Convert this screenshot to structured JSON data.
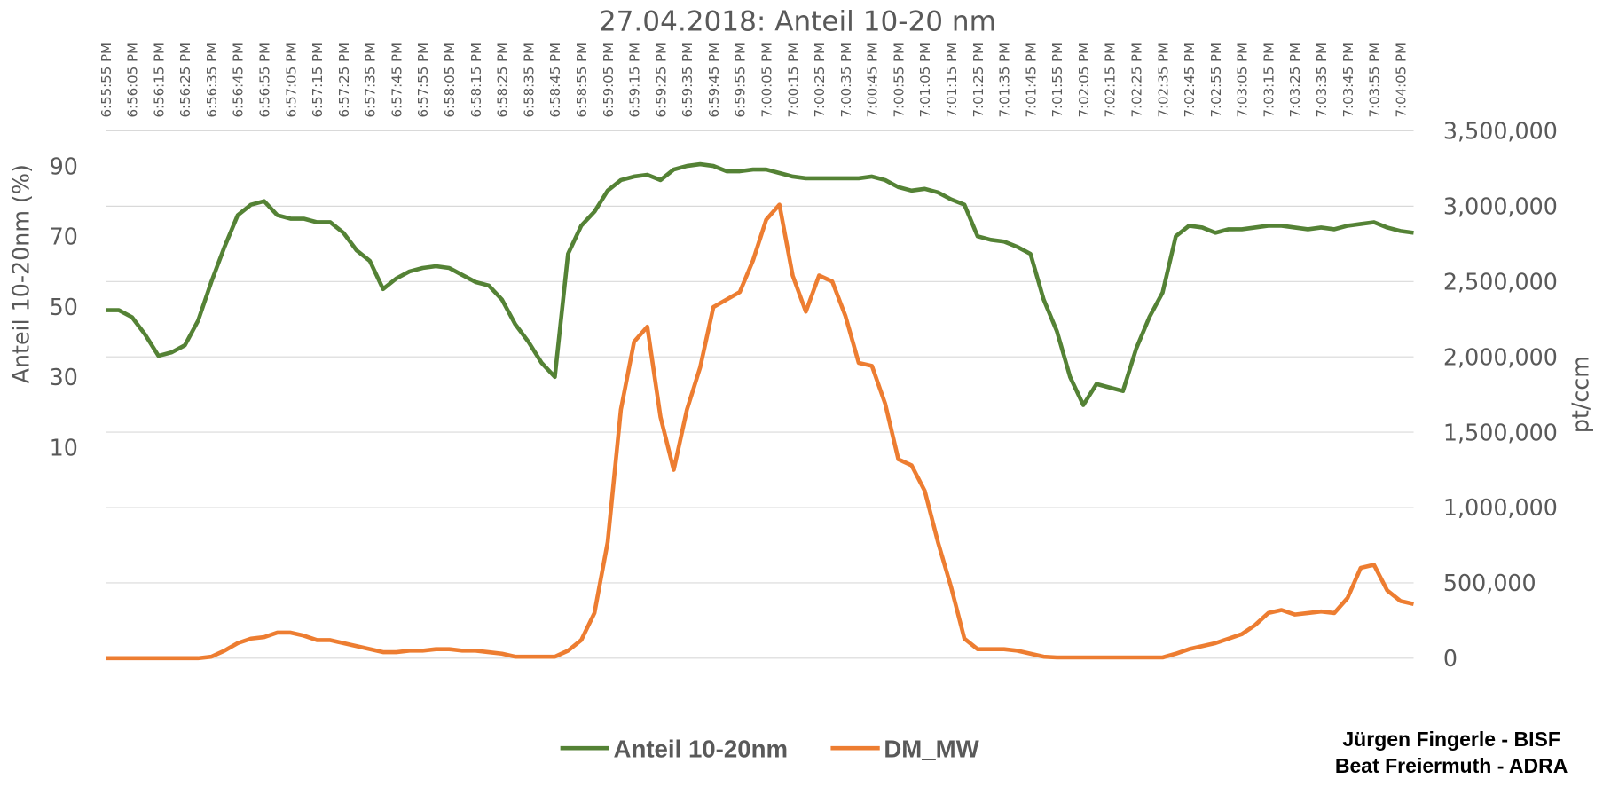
{
  "chart_data": {
    "type": "line",
    "title": "27.04.2018: Anteil 10-20 nm",
    "y_label": "Anteil 10-20nm (%)",
    "y2_label": "pt/ccm",
    "annotations": [
      "Jürgen Fingerle - BISF",
      "Beat Freiermuth - ADRA"
    ],
    "categories": [
      "6:55:55 PM",
      null,
      "6:56:05 PM",
      null,
      "6:56:15 PM",
      null,
      "6:56:25 PM",
      null,
      "6:56:35 PM",
      null,
      "6:56:45 PM",
      null,
      "6:56:55 PM",
      null,
      "6:57:05 PM",
      null,
      "6:57:15 PM",
      null,
      "6:57:25 PM",
      null,
      "6:57:35 PM",
      null,
      "6:57:45 PM",
      null,
      "6:57:55 PM",
      null,
      "6:58:05 PM",
      null,
      "6:58:15 PM",
      null,
      "6:58:25 PM",
      null,
      "6:58:35 PM",
      null,
      "6:58:45 PM",
      null,
      "6:58:55 PM",
      null,
      "6:59:05 PM",
      null,
      "6:59:15 PM",
      null,
      "6:59:25 PM",
      null,
      "6:59:35 PM",
      null,
      "6:59:45 PM",
      null,
      "6:59:55 PM",
      null,
      "7:00:05 PM",
      null,
      "7:00:15 PM",
      null,
      "7:00:25 PM",
      null,
      "7:00:35 PM",
      null,
      "7:00:45 PM",
      null,
      "7:00:55 PM",
      null,
      "7:01:05 PM",
      null,
      "7:01:15 PM",
      null,
      "7:01:25 PM",
      null,
      "7:01:35 PM",
      null,
      "7:01:45 PM",
      null,
      "7:01:55 PM",
      null,
      "7:02:05 PM",
      null,
      "7:02:15 PM",
      null,
      "7:02:25 PM",
      null,
      "7:02:35 PM",
      null,
      "7:02:45 PM",
      null,
      "7:02:55 PM",
      null,
      "7:03:05 PM",
      null,
      "7:03:15 PM",
      null,
      "7:03:25 PM",
      null,
      "7:03:35 PM",
      null,
      "7:03:45 PM",
      null,
      "7:03:55 PM",
      null,
      "7:04:05 PM",
      null
    ],
    "series": [
      {
        "name": "Anteil 10-20nm",
        "color": "#548235",
        "values": [
          49,
          49,
          47,
          42,
          36,
          37,
          39,
          46,
          57,
          67,
          76,
          79,
          80,
          76,
          75,
          75,
          74,
          74,
          71,
          66,
          63,
          55,
          58,
          60,
          61,
          61.5,
          61,
          59,
          57,
          56,
          52,
          45,
          40,
          34,
          30,
          65,
          73,
          77,
          83,
          86,
          87,
          87.5,
          86,
          89,
          90,
          90.5,
          90,
          88.5,
          88.5,
          89,
          89,
          88,
          87,
          86.5,
          86.5,
          86.5,
          86.5,
          86.5,
          87,
          86,
          84,
          83,
          83.5,
          82.5,
          80.5,
          79,
          70,
          69,
          68.5,
          67,
          65,
          52,
          43,
          30,
          22,
          28,
          27,
          26,
          38,
          47,
          54,
          70,
          73,
          72.5,
          71,
          72,
          72,
          72.5,
          73,
          73,
          72.5,
          72,
          72.5,
          72,
          73,
          73.5,
          74,
          72.5,
          71.5,
          71
        ]
      },
      {
        "name": "DM_MW",
        "color": "#ed7d31",
        "axis": "y2",
        "values": [
          0,
          0,
          0,
          0,
          0,
          0,
          0,
          0,
          10000,
          50000,
          100000,
          130000,
          140000,
          170000,
          170000,
          150000,
          120000,
          120000,
          100000,
          80000,
          60000,
          40000,
          40000,
          50000,
          50000,
          60000,
          60000,
          50000,
          50000,
          40000,
          30000,
          10000,
          10000,
          10000,
          10000,
          50000,
          120000,
          300000,
          770000,
          1650000,
          2100000,
          2200000,
          1600000,
          1250000,
          1650000,
          1930000,
          2330000,
          2380000,
          2430000,
          2640000,
          2910000,
          3010000,
          2540000,
          2300000,
          2540000,
          2500000,
          2270000,
          1960000,
          1940000,
          1690000,
          1320000,
          1280000,
          1110000,
          770000,
          470000,
          130000,
          60000,
          60000,
          60000,
          50000,
          30000,
          10000,
          5000,
          5000,
          5000,
          5000,
          5000,
          5000,
          5000,
          5000,
          5000,
          30000,
          60000,
          80000,
          100000,
          130000,
          160000,
          220000,
          300000,
          320000,
          290000,
          300000,
          310000,
          300000,
          400000,
          600000,
          620000,
          450000,
          380000,
          360000
        ]
      }
    ],
    "ylim": [
      -50,
      100
    ],
    "yticks": [
      10,
      30,
      50,
      70,
      90
    ],
    "y2lim": [
      0,
      3500000
    ],
    "y2ticks": [
      0,
      {
        "value": 500000,
        "label": "500,000"
      },
      {
        "value": 1000000,
        "label": "1,000,000"
      },
      {
        "value": 1500000,
        "label": "1,500,000"
      },
      {
        "value": 2000000,
        "label": "2,000,000"
      },
      {
        "value": 2500000,
        "label": "2,500,000"
      },
      {
        "value": 3000000,
        "label": "3,000,000"
      },
      {
        "value": 3500000,
        "label": "3,500,000"
      }
    ],
    "grid": true,
    "legend": "bottom"
  }
}
